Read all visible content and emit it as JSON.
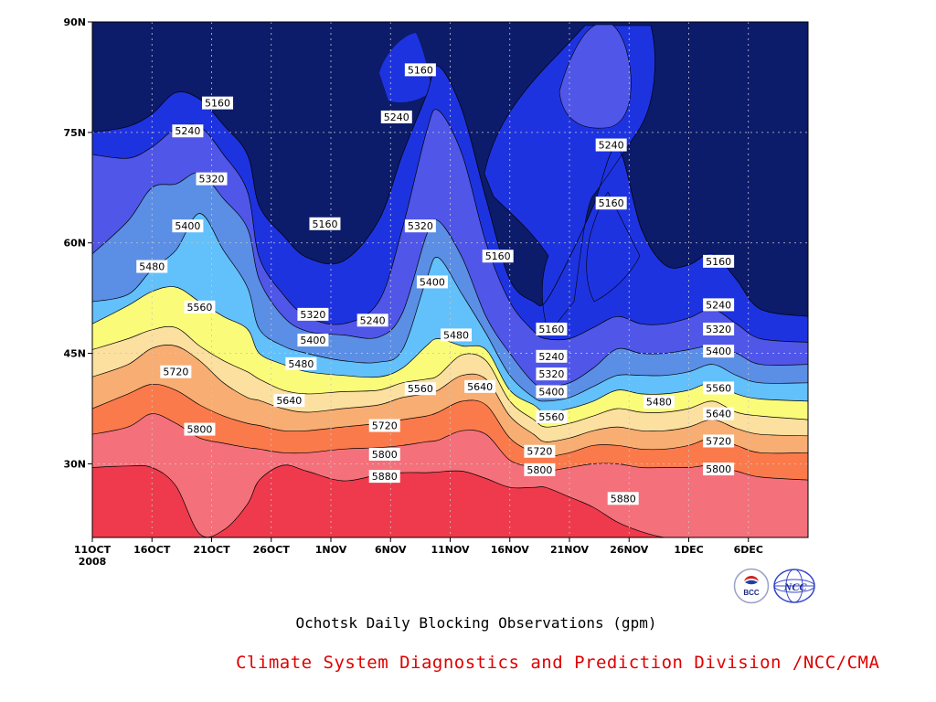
{
  "chart_data": {
    "type": "heatmap",
    "subtype": "filled-contour",
    "title": "Ochotsk Daily Blocking Observations (gpm)",
    "xlabel": "",
    "ylabel": "",
    "x_ticks": [
      "11OCT",
      "16OCT",
      "21OCT",
      "26OCT",
      "1NOV",
      "6NOV",
      "11NOV",
      "16NOV",
      "21NOV",
      "26NOV",
      "1DEC",
      "6DEC"
    ],
    "x_year": "2008",
    "y_ticks": [
      "30N",
      "45N",
      "60N",
      "75N",
      "90N"
    ],
    "y_tick_values": [
      30,
      45,
      60,
      75,
      90
    ],
    "ylim": [
      20,
      90
    ],
    "x_days_range": [
      0,
      60
    ],
    "grid": true,
    "contour_levels": [
      5160,
      5240,
      5320,
      5400,
      5480,
      5560,
      5640,
      5720,
      5800,
      5880
    ],
    "fill_colors": [
      "#0c1b6a",
      "#1e33e0",
      "#4f56e8",
      "#5b8ee5",
      "#62c0fb",
      "#fbfb7a",
      "#fbe0a0",
      "#f8ad72",
      "#fb7a4c",
      "#f4707a",
      "#ee3a4c"
    ],
    "contour_lines_lat": {
      "days": [
        0,
        3,
        5,
        7,
        9,
        11,
        13,
        14,
        16,
        18,
        21,
        24,
        26,
        28,
        29,
        31,
        33,
        35,
        37,
        38,
        40,
        42,
        44,
        46,
        48,
        50,
        52,
        54,
        56,
        60
      ],
      "5160": [
        75,
        75.8,
        77.5,
        80.4,
        79.5,
        76,
        72,
        65,
        61,
        58,
        57.5,
        63,
        72,
        80,
        84,
        78,
        66,
        55,
        52,
        52,
        58,
        65,
        73,
        62,
        57,
        57,
        58.5,
        55,
        51,
        50
      ],
      "5240": [
        72,
        71.5,
        73,
        75.5,
        75.8,
        72,
        67,
        58,
        53,
        50,
        49,
        52,
        62,
        75,
        78,
        72,
        60,
        52,
        48,
        47,
        47,
        48.5,
        50,
        49,
        49,
        49.8,
        51,
        49,
        47,
        46.5
      ],
      "5320": [
        58.5,
        63,
        67.5,
        68,
        69.5,
        66,
        62,
        55,
        50,
        48,
        47.5,
        47.2,
        50.5,
        61,
        63,
        58,
        50,
        45,
        41,
        40.5,
        41,
        43,
        45.6,
        45,
        45,
        45.5,
        46,
        45,
        43.5,
        43.5
      ],
      "5400": [
        52,
        53,
        56.4,
        59,
        64,
        59,
        54,
        48.3,
        46,
        45,
        44,
        43.8,
        45.5,
        55,
        58,
        53,
        47.7,
        42,
        39,
        38.5,
        39,
        40.5,
        42,
        42,
        42,
        42.5,
        43.5,
        42,
        41,
        41
      ],
      "5480": [
        49,
        51.5,
        53.4,
        54,
        52,
        50,
        48.3,
        45,
        43.5,
        42.5,
        42,
        41.8,
        43,
        46,
        47,
        46,
        45.5,
        40,
        38,
        37,
        37.5,
        38.5,
        40,
        39.5,
        39.5,
        40,
        41,
        39.5,
        38.8,
        38.5
      ],
      "5560": [
        45.5,
        47,
        48.2,
        48.5,
        46,
        44,
        42.5,
        41.5,
        40,
        39.5,
        39.8,
        40,
        41,
        41.5,
        42,
        44.8,
        44,
        38.5,
        36,
        35,
        35.5,
        36.5,
        37.5,
        37,
        37,
        37.5,
        38.5,
        37,
        36.5,
        36
      ],
      "5640": [
        41.8,
        43.5,
        45.7,
        46,
        44,
        41,
        39,
        38.6,
        37.5,
        37,
        37.5,
        38,
        39,
        39.5,
        40,
        42,
        41.5,
        36.5,
        34,
        33,
        33.5,
        34.5,
        35,
        34.5,
        34.5,
        35,
        36,
        34.8,
        34,
        33.8
      ],
      "5720": [
        37.5,
        39.5,
        40.8,
        40,
        38,
        36.5,
        35.5,
        35.2,
        34.5,
        34.5,
        35,
        35.5,
        36,
        36.5,
        37,
        38.5,
        38,
        33.5,
        31.5,
        31,
        31.5,
        32.5,
        32.5,
        32,
        32,
        32.5,
        33.5,
        32.5,
        31.5,
        31.5
      ],
      "5800": [
        34,
        35,
        36.8,
        35.5,
        33.5,
        32.8,
        32.2,
        32,
        31.5,
        31.5,
        32,
        32.2,
        32.5,
        33,
        33.2,
        34.5,
        34,
        30.5,
        29.5,
        29,
        29.5,
        30,
        30,
        29.5,
        29.5,
        29.5,
        29.8,
        29,
        28.2,
        27.8
      ],
      "5880": [
        29.5,
        29.7,
        29.5,
        27,
        20.5,
        21,
        24.5,
        27.8,
        29.8,
        29,
        27.7,
        28.5,
        28.8,
        28.8,
        28.9,
        29,
        28,
        26.8,
        26.8,
        26.8,
        25.5,
        24.1,
        22.1,
        20.8,
        20,
        20,
        20,
        20,
        20,
        20
      ]
    },
    "contour_labels": [
      {
        "text": "5160",
        "day": 10.5,
        "lat": 79
      },
      {
        "text": "5240",
        "day": 8,
        "lat": 75.2
      },
      {
        "text": "5320",
        "day": 10,
        "lat": 68.7
      },
      {
        "text": "5400",
        "day": 8,
        "lat": 62.3
      },
      {
        "text": "5480",
        "day": 5,
        "lat": 56.8
      },
      {
        "text": "5560",
        "day": 9,
        "lat": 51.3
      },
      {
        "text": "5640",
        "day": 16.5,
        "lat": 38.6
      },
      {
        "text": "5720",
        "day": 7,
        "lat": 42.5
      },
      {
        "text": "5800",
        "day": 9,
        "lat": 34.7
      },
      {
        "text": "5160",
        "day": 19.5,
        "lat": 62.6
      },
      {
        "text": "5320",
        "day": 18.5,
        "lat": 50.3
      },
      {
        "text": "5400",
        "day": 18.5,
        "lat": 46.8
      },
      {
        "text": "5480",
        "day": 17.5,
        "lat": 43.6
      },
      {
        "text": "5240",
        "day": 23.5,
        "lat": 49.5
      },
      {
        "text": "5720",
        "day": 24.5,
        "lat": 35.2
      },
      {
        "text": "5800",
        "day": 24.5,
        "lat": 31.3
      },
      {
        "text": "5880",
        "day": 24.5,
        "lat": 28.3
      },
      {
        "text": "5160",
        "day": 27.5,
        "lat": 83.5
      },
      {
        "text": "5240",
        "day": 25.5,
        "lat": 77.1
      },
      {
        "text": "5320",
        "day": 27.5,
        "lat": 62.3
      },
      {
        "text": "5400",
        "day": 28.5,
        "lat": 54.7
      },
      {
        "text": "5560",
        "day": 27.5,
        "lat": 40.2
      },
      {
        "text": "5480",
        "day": 30.5,
        "lat": 47.5
      },
      {
        "text": "5640",
        "day": 32.5,
        "lat": 40.5
      },
      {
        "text": "5160",
        "day": 34,
        "lat": 58.2
      },
      {
        "text": "5160",
        "day": 38.5,
        "lat": 48.3
      },
      {
        "text": "5240",
        "day": 38.5,
        "lat": 44.6
      },
      {
        "text": "5320",
        "day": 38.5,
        "lat": 42.2
      },
      {
        "text": "5400",
        "day": 38.5,
        "lat": 39.8
      },
      {
        "text": "5560",
        "day": 38.5,
        "lat": 36.4
      },
      {
        "text": "5720",
        "day": 37.5,
        "lat": 31.7
      },
      {
        "text": "5800",
        "day": 37.5,
        "lat": 29.2
      },
      {
        "text": "5240",
        "day": 43.5,
        "lat": 73.3
      },
      {
        "text": "5160",
        "day": 43.5,
        "lat": 65.4
      },
      {
        "text": "5880",
        "day": 44.5,
        "lat": 25.3
      },
      {
        "text": "5480",
        "day": 47.5,
        "lat": 38.4
      },
      {
        "text": "5160",
        "day": 52.5,
        "lat": 57.5
      },
      {
        "text": "5240",
        "day": 52.5,
        "lat": 51.6
      },
      {
        "text": "5320",
        "day": 52.5,
        "lat": 48.3
      },
      {
        "text": "5400",
        "day": 52.5,
        "lat": 45.3
      },
      {
        "text": "5560",
        "day": 52.5,
        "lat": 40.3
      },
      {
        "text": "5640",
        "day": 52.5,
        "lat": 36.8
      },
      {
        "text": "5720",
        "day": 52.5,
        "lat": 33.1
      },
      {
        "text": "5800",
        "day": 52.5,
        "lat": 29.3
      }
    ]
  },
  "footer": {
    "title": "Ochotsk Daily Blocking Observations (gpm)",
    "credit": "Climate System Diagnostics and Prediction Division /NCC/CMA",
    "logo_bcc_text": "BCC",
    "logo_ncc_text": "NCC"
  }
}
